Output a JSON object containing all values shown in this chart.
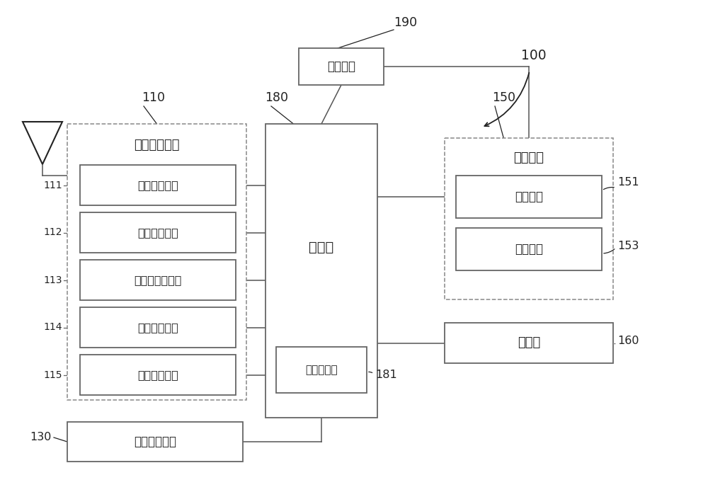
{
  "bg_color": "#ffffff",
  "text_color": "#222222",
  "box_edge_color": "#666666",
  "labels": {
    "wireless_unit": "无线通信单元",
    "broadcast_module": "广播接收模块",
    "mobile_module": "移动通信模块",
    "wifi_module": "无线互联网模块",
    "short_module": "短程通信模块",
    "location_module": "位置信息模块",
    "user_input": "用户输入单元",
    "controller": "控制器",
    "multimedia": "多媒体模块",
    "output_unit": "输出单元",
    "display_unit": "显示单元",
    "alarm_unit": "警报单元",
    "storage": "存储器",
    "power_unit": "电源单元"
  }
}
